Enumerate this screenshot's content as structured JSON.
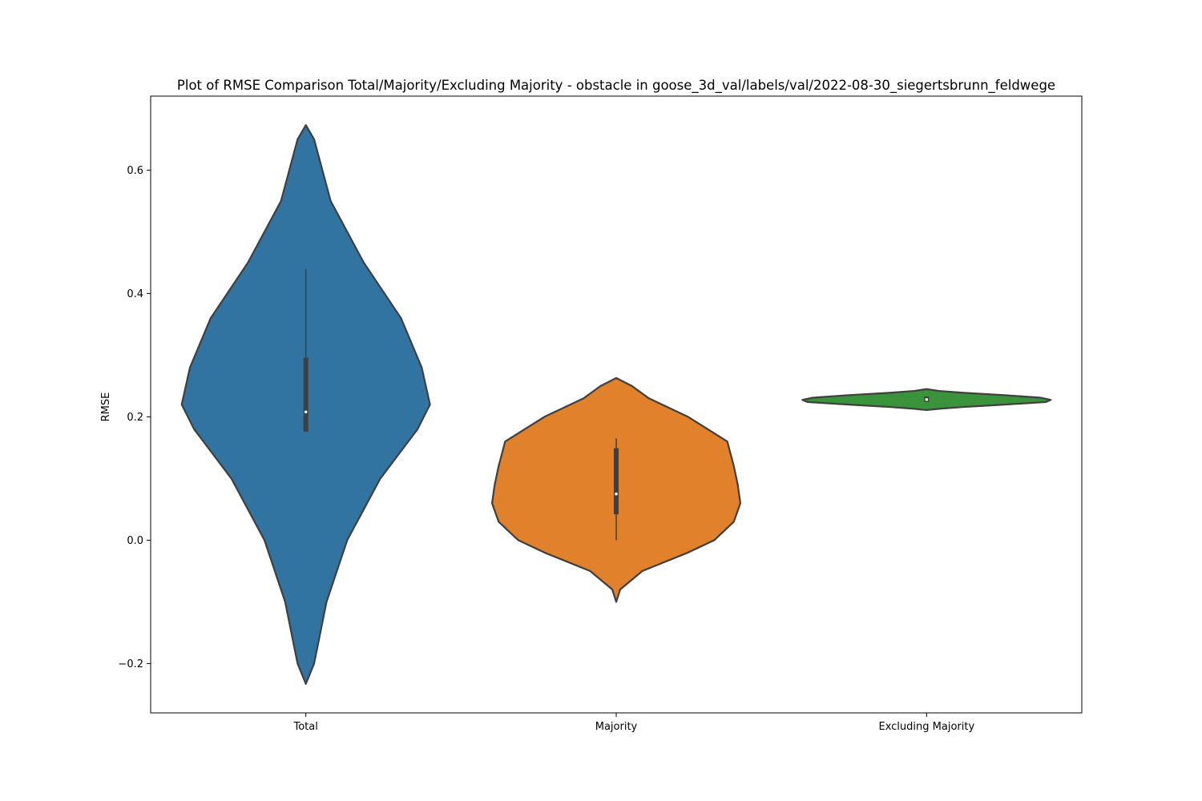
{
  "chart_data": {
    "type": "violin",
    "title": "Plot of RMSE Comparison Total/Majority/Excluding Majority - obstacle in goose_3d_val/labels/val/2022-08-30_siegertsbrunn_feldwege",
    "xlabel": "",
    "ylabel": "RMSE",
    "ylim": [
      -0.28,
      0.72
    ],
    "yticks": [
      -0.2,
      0.0,
      0.2,
      0.4,
      0.6
    ],
    "ytick_labels": [
      "−0.2",
      "0.0",
      "0.2",
      "0.4",
      "0.6"
    ],
    "grid": false,
    "categories": [
      "Total",
      "Majority",
      "Excluding Majority"
    ],
    "colors": [
      "#3274a1",
      "#e1812c",
      "#3a923a"
    ],
    "series": [
      {
        "category": "Total",
        "median": 0.208,
        "q1": 0.176,
        "q3": 0.296,
        "whisker_low": 0.176,
        "whisker_high": 0.44,
        "kde_min": -0.233,
        "kde_max": 0.673,
        "density": [
          [
            -0.233,
            0.0
          ],
          [
            -0.2,
            0.002
          ],
          [
            -0.1,
            0.005
          ],
          [
            0.0,
            0.01
          ],
          [
            0.1,
            0.018
          ],
          [
            0.18,
            0.027
          ],
          [
            0.22,
            0.03
          ],
          [
            0.28,
            0.028
          ],
          [
            0.36,
            0.023
          ],
          [
            0.45,
            0.014
          ],
          [
            0.55,
            0.006
          ],
          [
            0.65,
            0.002
          ],
          [
            0.673,
            0.0
          ]
        ]
      },
      {
        "category": "Majority",
        "median": 0.075,
        "q1": 0.042,
        "q3": 0.149,
        "whisker_low": 0.0,
        "whisker_high": 0.165,
        "kde_min": -0.1,
        "kde_max": 0.263,
        "density": [
          [
            -0.1,
            0.0
          ],
          [
            -0.08,
            0.003
          ],
          [
            -0.05,
            0.02
          ],
          [
            -0.02,
            0.055
          ],
          [
            0.0,
            0.075
          ],
          [
            0.03,
            0.09
          ],
          [
            0.06,
            0.095
          ],
          [
            0.09,
            0.093
          ],
          [
            0.12,
            0.09
          ],
          [
            0.16,
            0.085
          ],
          [
            0.2,
            0.055
          ],
          [
            0.23,
            0.025
          ],
          [
            0.25,
            0.012
          ],
          [
            0.263,
            0.0
          ]
        ]
      },
      {
        "category": "Excluding Majority",
        "median": 0.228,
        "q1": 0.224,
        "q3": 0.233,
        "whisker_low": 0.224,
        "whisker_high": 0.233,
        "kde_min": 0.211,
        "kde_max": 0.245,
        "density": [
          [
            0.211,
            0.0
          ],
          [
            0.213,
            0.05
          ],
          [
            0.216,
            0.15
          ],
          [
            0.22,
            0.32
          ],
          [
            0.224,
            0.48
          ],
          [
            0.2275,
            0.5
          ],
          [
            0.231,
            0.46
          ],
          [
            0.235,
            0.32
          ],
          [
            0.239,
            0.15
          ],
          [
            0.242,
            0.05
          ],
          [
            0.245,
            0.0
          ]
        ]
      }
    ]
  }
}
